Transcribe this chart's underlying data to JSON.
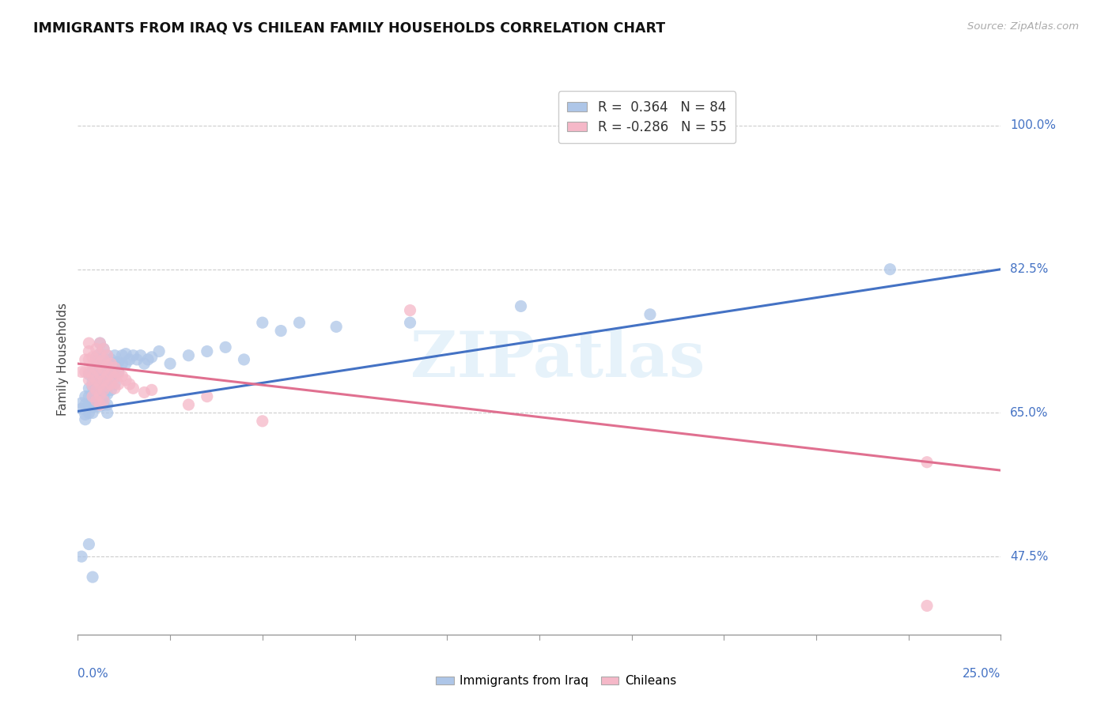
{
  "title": "IMMIGRANTS FROM IRAQ VS CHILEAN FAMILY HOUSEHOLDS CORRELATION CHART",
  "source": "Source: ZipAtlas.com",
  "ylabel": "Family Households",
  "ytick_labels": [
    "47.5%",
    "65.0%",
    "82.5%",
    "100.0%"
  ],
  "ytick_values": [
    0.475,
    0.65,
    0.825,
    1.0
  ],
  "xlim": [
    0.0,
    0.25
  ],
  "ylim": [
    0.38,
    1.05
  ],
  "iraq_color": "#aec6e8",
  "chile_color": "#f5b8c8",
  "iraq_line_color": "#4472c4",
  "chile_line_color": "#e07090",
  "watermark": "ZIPatlas",
  "iraq_points": [
    [
      0.001,
      0.655
    ],
    [
      0.001,
      0.662
    ],
    [
      0.002,
      0.66
    ],
    [
      0.002,
      0.67
    ],
    [
      0.002,
      0.648
    ],
    [
      0.002,
      0.642
    ],
    [
      0.003,
      0.68
    ],
    [
      0.003,
      0.67
    ],
    [
      0.003,
      0.66
    ],
    [
      0.003,
      0.65
    ],
    [
      0.003,
      0.697
    ],
    [
      0.004,
      0.7
    ],
    [
      0.004,
      0.688
    ],
    [
      0.004,
      0.672
    ],
    [
      0.004,
      0.682
    ],
    [
      0.004,
      0.665
    ],
    [
      0.004,
      0.657
    ],
    [
      0.004,
      0.65
    ],
    [
      0.005,
      0.718
    ],
    [
      0.005,
      0.708
    ],
    [
      0.005,
      0.698
    ],
    [
      0.005,
      0.688
    ],
    [
      0.005,
      0.678
    ],
    [
      0.005,
      0.668
    ],
    [
      0.005,
      0.658
    ],
    [
      0.005,
      0.692
    ],
    [
      0.006,
      0.735
    ],
    [
      0.006,
      0.722
    ],
    [
      0.006,
      0.712
    ],
    [
      0.006,
      0.702
    ],
    [
      0.006,
      0.692
    ],
    [
      0.006,
      0.678
    ],
    [
      0.006,
      0.665
    ],
    [
      0.006,
      0.658
    ],
    [
      0.007,
      0.728
    ],
    [
      0.007,
      0.715
    ],
    [
      0.007,
      0.703
    ],
    [
      0.007,
      0.693
    ],
    [
      0.007,
      0.68
    ],
    [
      0.007,
      0.67
    ],
    [
      0.007,
      0.66
    ],
    [
      0.008,
      0.72
    ],
    [
      0.008,
      0.71
    ],
    [
      0.008,
      0.698
    ],
    [
      0.008,
      0.685
    ],
    [
      0.008,
      0.673
    ],
    [
      0.008,
      0.66
    ],
    [
      0.008,
      0.65
    ],
    [
      0.009,
      0.715
    ],
    [
      0.009,
      0.703
    ],
    [
      0.009,
      0.69
    ],
    [
      0.009,
      0.678
    ],
    [
      0.01,
      0.72
    ],
    [
      0.01,
      0.71
    ],
    [
      0.01,
      0.698
    ],
    [
      0.01,
      0.685
    ],
    [
      0.011,
      0.712
    ],
    [
      0.011,
      0.7
    ],
    [
      0.012,
      0.72
    ],
    [
      0.012,
      0.71
    ],
    [
      0.013,
      0.722
    ],
    [
      0.013,
      0.71
    ],
    [
      0.014,
      0.715
    ],
    [
      0.015,
      0.72
    ],
    [
      0.016,
      0.715
    ],
    [
      0.017,
      0.72
    ],
    [
      0.018,
      0.71
    ],
    [
      0.019,
      0.715
    ],
    [
      0.02,
      0.718
    ],
    [
      0.022,
      0.725
    ],
    [
      0.025,
      0.71
    ],
    [
      0.03,
      0.72
    ],
    [
      0.035,
      0.725
    ],
    [
      0.04,
      0.73
    ],
    [
      0.045,
      0.715
    ],
    [
      0.05,
      0.76
    ],
    [
      0.055,
      0.75
    ],
    [
      0.06,
      0.76
    ],
    [
      0.07,
      0.755
    ],
    [
      0.09,
      0.76
    ],
    [
      0.12,
      0.78
    ],
    [
      0.155,
      0.77
    ],
    [
      0.001,
      0.475
    ],
    [
      0.003,
      0.49
    ],
    [
      0.004,
      0.45
    ],
    [
      0.22,
      0.825
    ]
  ],
  "chile_points": [
    [
      0.001,
      0.7
    ],
    [
      0.002,
      0.715
    ],
    [
      0.002,
      0.7
    ],
    [
      0.003,
      0.735
    ],
    [
      0.003,
      0.725
    ],
    [
      0.003,
      0.715
    ],
    [
      0.003,
      0.7
    ],
    [
      0.003,
      0.69
    ],
    [
      0.004,
      0.718
    ],
    [
      0.004,
      0.708
    ],
    [
      0.004,
      0.695
    ],
    [
      0.004,
      0.683
    ],
    [
      0.004,
      0.67
    ],
    [
      0.005,
      0.728
    ],
    [
      0.005,
      0.715
    ],
    [
      0.005,
      0.703
    ],
    [
      0.005,
      0.69
    ],
    [
      0.005,
      0.678
    ],
    [
      0.005,
      0.665
    ],
    [
      0.006,
      0.735
    ],
    [
      0.006,
      0.722
    ],
    [
      0.006,
      0.71
    ],
    [
      0.006,
      0.698
    ],
    [
      0.006,
      0.685
    ],
    [
      0.006,
      0.672
    ],
    [
      0.006,
      0.66
    ],
    [
      0.007,
      0.728
    ],
    [
      0.007,
      0.715
    ],
    [
      0.007,
      0.703
    ],
    [
      0.007,
      0.69
    ],
    [
      0.007,
      0.678
    ],
    [
      0.007,
      0.665
    ],
    [
      0.008,
      0.72
    ],
    [
      0.008,
      0.708
    ],
    [
      0.008,
      0.695
    ],
    [
      0.008,
      0.683
    ],
    [
      0.009,
      0.71
    ],
    [
      0.009,
      0.698
    ],
    [
      0.009,
      0.685
    ],
    [
      0.01,
      0.705
    ],
    [
      0.01,
      0.693
    ],
    [
      0.01,
      0.68
    ],
    [
      0.011,
      0.698
    ],
    [
      0.011,
      0.685
    ],
    [
      0.012,
      0.695
    ],
    [
      0.013,
      0.69
    ],
    [
      0.014,
      0.685
    ],
    [
      0.015,
      0.68
    ],
    [
      0.018,
      0.675
    ],
    [
      0.02,
      0.678
    ],
    [
      0.03,
      0.66
    ],
    [
      0.035,
      0.67
    ],
    [
      0.05,
      0.64
    ],
    [
      0.09,
      0.775
    ],
    [
      0.23,
      0.415
    ],
    [
      0.23,
      0.59
    ]
  ],
  "iraq_trend_x": [
    0.0,
    0.25
  ],
  "iraq_trend_y": [
    0.652,
    0.825
  ],
  "chile_trend_x": [
    0.0,
    0.25
  ],
  "chile_trend_y": [
    0.71,
    0.58
  ]
}
